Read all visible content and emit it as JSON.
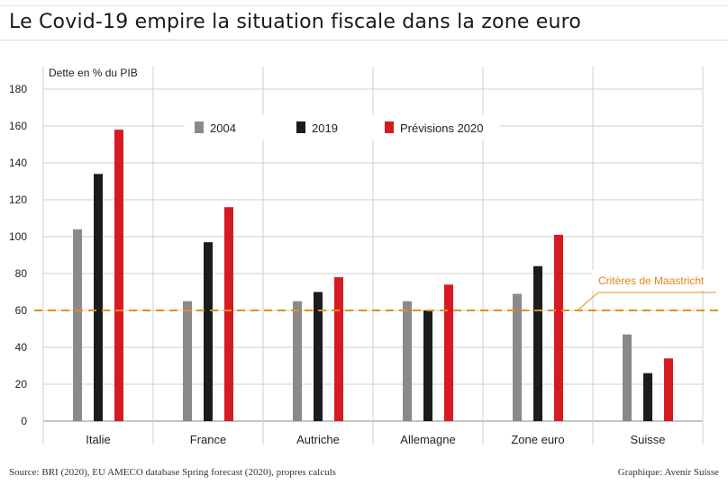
{
  "title": "Le Covid-19 empire la situation fiscale dans la zone euro",
  "source": "Source: BRI (2020), EU AMECO database Spring forecast (2020), propres calculs",
  "credit": "Graphique: Avenir Suisse",
  "colors": {
    "s2004": "#8c8989",
    "s2019": "#1c1c1c",
    "s2020": "#d71a21",
    "threshold": "#ec8a1f",
    "grid": "#cfcfcf"
  },
  "chart_data": {
    "type": "bar",
    "ylabel": "Dette en % du PIB",
    "ylim": [
      0,
      180
    ],
    "yticks": [
      0,
      20,
      40,
      60,
      80,
      100,
      120,
      140,
      160,
      180
    ],
    "categories": [
      "Italie",
      "France",
      "Autriche",
      "Allemagne",
      "Zone euro",
      "Suisse"
    ],
    "series": [
      {
        "name": "2004",
        "values": [
          104,
          65,
          65,
          65,
          69,
          47
        ]
      },
      {
        "name": "2019",
        "values": [
          134,
          97,
          70,
          60,
          84,
          26
        ]
      },
      {
        "name": "Prévisions 2020",
        "values": [
          158,
          116,
          78,
          74,
          101,
          34
        ]
      }
    ],
    "threshold": {
      "value": 60,
      "label": "Critères de Maastricht"
    },
    "legend_position": "top",
    "grid": true
  }
}
